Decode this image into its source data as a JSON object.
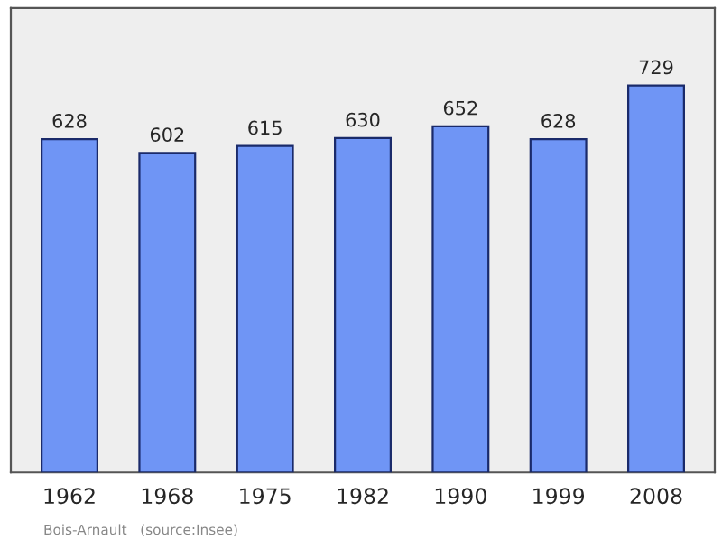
{
  "chart_data": {
    "type": "bar",
    "categories": [
      "1962",
      "1968",
      "1975",
      "1982",
      "1990",
      "1999",
      "2008"
    ],
    "values": [
      628,
      602,
      615,
      630,
      652,
      628,
      729
    ],
    "color": "#6f95f5",
    "data_labels": true,
    "annotations": [
      "Bois-Arnault   (source:Insee)"
    ]
  }
}
